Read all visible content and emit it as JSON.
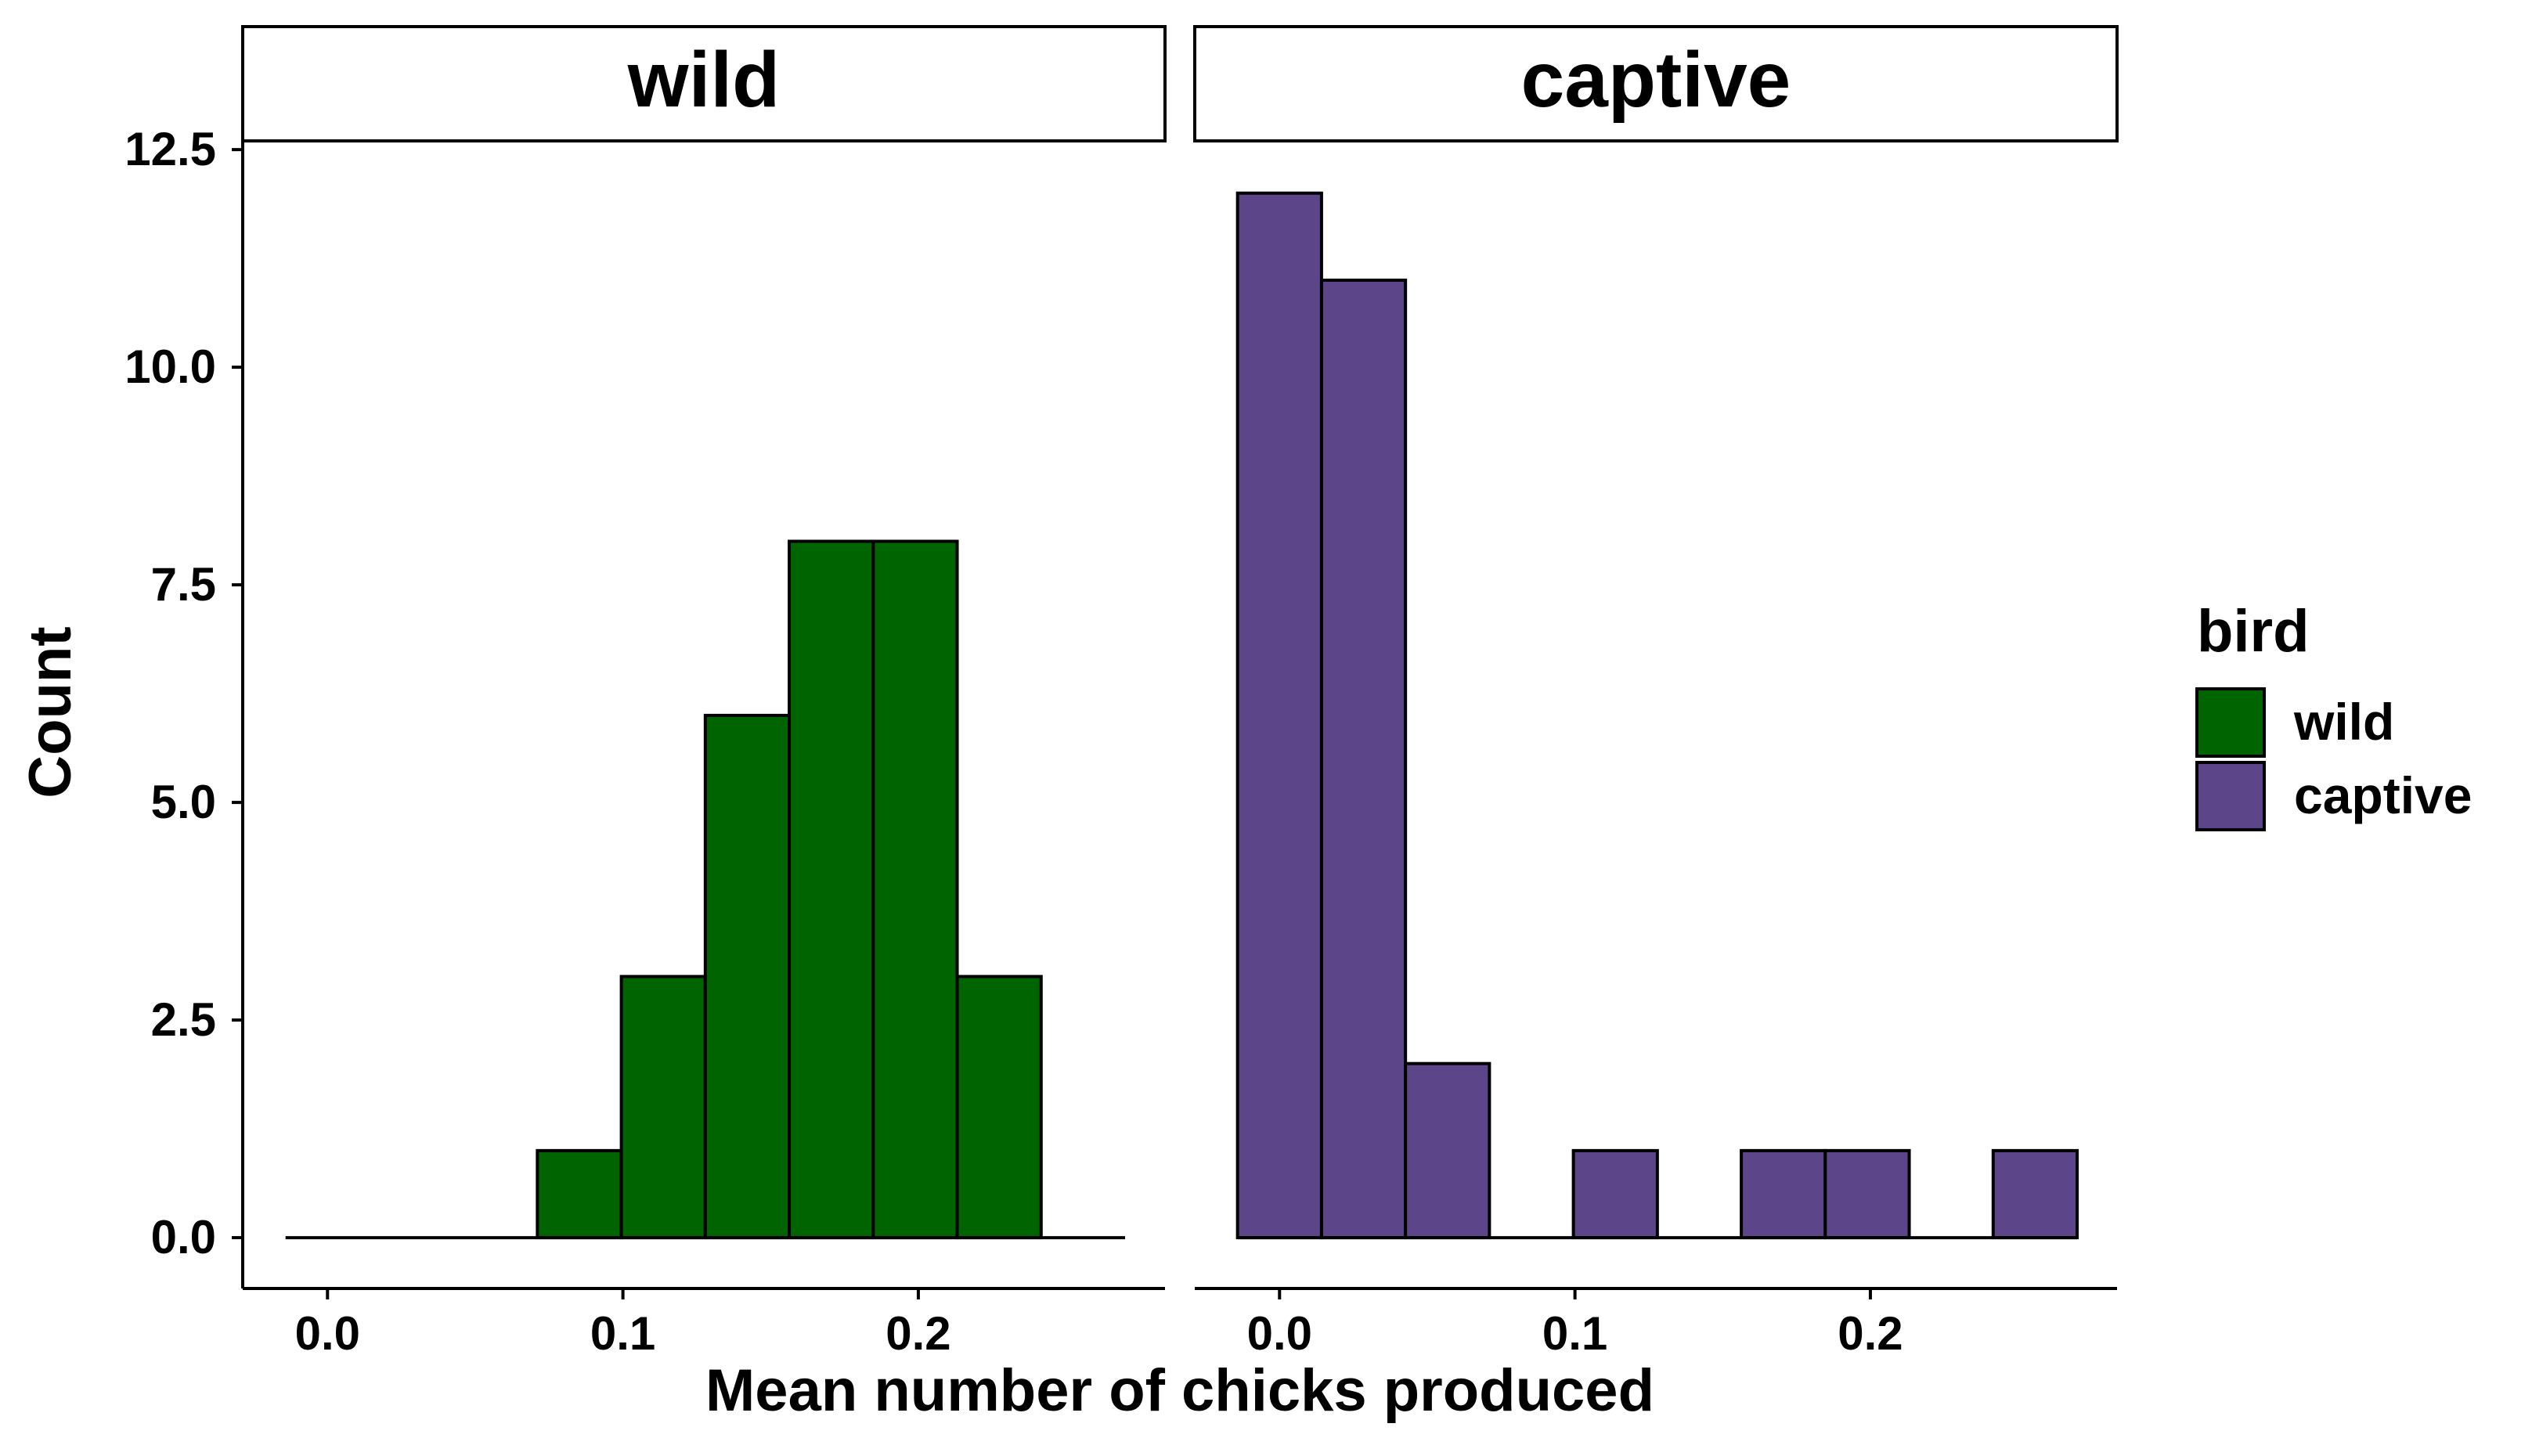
{
  "chart_data": {
    "type": "bar",
    "ylabel": "Count",
    "xlabel": "Mean number of chicks produced",
    "ylim": [
      -0.5839,
      12.6
    ],
    "y_ticks": [
      0,
      2.5,
      5,
      7.5,
      10,
      12.5
    ],
    "y_tick_labels": [
      "0.0",
      "2.5",
      "5.0",
      "7.5",
      "10.0",
      "12.5"
    ],
    "x_ticks": [
      0,
      0.1,
      0.2
    ],
    "x_tick_labels": [
      "0.0",
      "0.1",
      "0.2"
    ],
    "grid": false,
    "legend": {
      "title": "bird",
      "position": "right",
      "entries": [
        {
          "label": "wild",
          "color": "#006400"
        },
        {
          "label": "captive",
          "color": "#5D4589"
        }
      ]
    },
    "panels": [
      {
        "name": "wild",
        "color": "#006400",
        "xlim": [
          -0.0287,
          0.2835
        ],
        "bin_width": 0.02842,
        "bin_starts": [
          -0.01421,
          0.01421,
          0.04263,
          0.07105,
          0.09947,
          0.12789,
          0.15631,
          0.18473,
          0.21315,
          0.24157
        ],
        "values": [
          0,
          0,
          0,
          1,
          3,
          6,
          8,
          8,
          3,
          0
        ]
      },
      {
        "name": "captive",
        "color": "#5D4589",
        "xlim": [
          -0.0287,
          0.2835
        ],
        "bin_width": 0.02842,
        "bin_starts": [
          -0.01421,
          0.01421,
          0.04263,
          0.07105,
          0.09947,
          0.12789,
          0.15631,
          0.18473,
          0.21315,
          0.24157
        ],
        "values": [
          12,
          11,
          2,
          0,
          1,
          0,
          1,
          1,
          0,
          1
        ]
      }
    ]
  }
}
